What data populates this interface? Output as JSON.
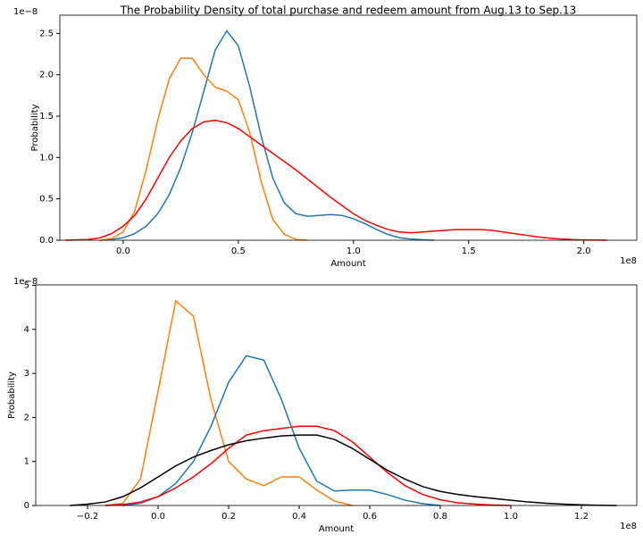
{
  "chart_data": [
    {
      "type": "line",
      "title": "The Probability Density of total purchase and redeem amount from Aug.13 to Sep.13",
      "x_label": "Amount",
      "y_label": "Probability",
      "x_offset_label": "1e8",
      "y_offset_label": "1e−8",
      "xlim": [
        -0.275,
        2.23
      ],
      "ylim": [
        0,
        2.72
      ],
      "xticks": [
        {
          "value": 0,
          "label": "0.0"
        },
        0.5,
        {
          "value": 1,
          "label": "1.0"
        },
        1.5,
        {
          "value": 2,
          "label": "2.0"
        }
      ],
      "yticks": [
        {
          "value": 0,
          "label": "0.0"
        },
        0.5,
        {
          "value": 1,
          "label": "1.0"
        },
        1.5,
        {
          "value": 2,
          "label": "2.0"
        },
        2.5
      ],
      "x": [
        -0.25,
        -0.2,
        -0.15,
        -0.1,
        -0.05,
        0,
        0.05,
        0.1,
        0.15,
        0.2,
        0.25,
        0.3,
        0.35,
        0.4,
        0.45,
        0.5,
        0.55,
        0.6,
        0.65,
        0.7,
        0.75,
        0.8,
        0.85,
        0.9,
        0.95,
        1.0,
        1.05,
        1.1,
        1.15,
        1.2,
        1.25,
        1.3,
        1.35,
        1.4,
        1.45,
        1.5,
        1.55,
        1.6,
        1.65,
        1.7,
        1.75,
        1.8,
        1.85,
        1.9,
        1.95,
        2.0,
        2.05,
        2.1
      ],
      "series": [
        {
          "color": "#1f77b4",
          "values": [
            null,
            null,
            null,
            0,
            0.01,
            0.03,
            0.08,
            0.17,
            0.32,
            0.55,
            0.88,
            1.3,
            1.8,
            2.3,
            2.53,
            2.35,
            1.85,
            1.25,
            0.75,
            0.45,
            0.32,
            0.29,
            0.3,
            0.31,
            0.3,
            0.26,
            0.2,
            0.13,
            0.07,
            0.03,
            0.015,
            0.005,
            0,
            null,
            null,
            null,
            null,
            null,
            null,
            null,
            null,
            null,
            null,
            null,
            null,
            null,
            null,
            null
          ]
        },
        {
          "color": "#ff7f0e",
          "values": [
            null,
            null,
            null,
            0,
            0.02,
            0.1,
            0.35,
            0.85,
            1.45,
            1.95,
            2.2,
            2.2,
            2.0,
            1.85,
            1.8,
            1.7,
            1.3,
            0.7,
            0.25,
            0.07,
            0.01,
            0,
            null,
            null,
            null,
            null,
            null,
            null,
            null,
            null,
            null,
            null,
            null,
            null,
            null,
            null,
            null,
            null,
            null,
            null,
            null,
            null,
            null,
            null,
            null,
            null,
            null,
            null
          ]
        },
        {
          "color": "#ff0000",
          "values": [
            0,
            0.005,
            0.01,
            0.03,
            0.08,
            0.17,
            0.3,
            0.5,
            0.75,
            1.0,
            1.2,
            1.35,
            1.43,
            1.45,
            1.42,
            1.35,
            1.25,
            1.15,
            1.05,
            0.95,
            0.85,
            0.74,
            0.63,
            0.52,
            0.42,
            0.32,
            0.24,
            0.18,
            0.13,
            0.1,
            0.09,
            0.1,
            0.11,
            0.12,
            0.13,
            0.13,
            0.13,
            0.12,
            0.1,
            0.08,
            0.06,
            0.04,
            0.025,
            0.015,
            0.008,
            0.004,
            0.002,
            0
          ]
        }
      ]
    },
    {
      "type": "line",
      "x_label": "Amount",
      "y_label": "Probability",
      "x_offset_label": "1e8",
      "y_offset_label": "1e−8",
      "xlim": [
        -0.347,
        1.357
      ],
      "ylim": [
        0,
        5.01
      ],
      "xticks": [
        {
          "value": -0.2,
          "label": "−0.2"
        },
        {
          "value": 0,
          "label": "0.0"
        },
        0.2,
        0.4,
        0.6,
        0.8,
        {
          "value": 1,
          "label": "1.0"
        },
        1.2
      ],
      "yticks": [
        0,
        1,
        2,
        3,
        4,
        5
      ],
      "x": [
        -0.25,
        -0.2,
        -0.15,
        -0.1,
        -0.05,
        0,
        0.05,
        0.1,
        0.15,
        0.2,
        0.25,
        0.3,
        0.35,
        0.4,
        0.45,
        0.5,
        0.55,
        0.6,
        0.65,
        0.7,
        0.75,
        0.8,
        0.85,
        0.9,
        0.95,
        1.0,
        1.05,
        1.1,
        1.15,
        1.2,
        1.25,
        1.3
      ],
      "series": [
        {
          "color": "#ff7f0e",
          "values": [
            null,
            null,
            0,
            0.05,
            0.6,
            2.6,
            4.65,
            4.3,
            2.4,
            1.0,
            0.6,
            0.45,
            0.65,
            0.65,
            0.35,
            0.1,
            0,
            null,
            null,
            null,
            null,
            null,
            null,
            null,
            null,
            null,
            null,
            null,
            null,
            null,
            null,
            null
          ]
        },
        {
          "color": "#1f77b4",
          "values": [
            null,
            null,
            null,
            0,
            0.05,
            0.2,
            0.5,
            1.0,
            1.8,
            2.8,
            3.4,
            3.3,
            2.4,
            1.3,
            0.55,
            0.33,
            0.35,
            0.35,
            0.25,
            0.12,
            0.04,
            0,
            null,
            null,
            null,
            null,
            null,
            null,
            null,
            null,
            null,
            null
          ]
        },
        {
          "color": "#ff0000",
          "values": [
            null,
            null,
            0,
            0.02,
            0.08,
            0.2,
            0.4,
            0.65,
            0.95,
            1.3,
            1.6,
            1.7,
            1.75,
            1.8,
            1.8,
            1.7,
            1.45,
            1.1,
            0.75,
            0.45,
            0.25,
            0.13,
            0.06,
            0.03,
            0.01,
            0,
            null,
            null,
            null,
            null,
            null,
            null
          ]
        },
        {
          "color": "#000000",
          "values": [
            0,
            0.03,
            0.08,
            0.2,
            0.4,
            0.65,
            0.9,
            1.1,
            1.25,
            1.38,
            1.47,
            1.53,
            1.58,
            1.6,
            1.6,
            1.5,
            1.3,
            1.05,
            0.8,
            0.6,
            0.43,
            0.32,
            0.25,
            0.2,
            0.16,
            0.12,
            0.08,
            0.05,
            0.03,
            0.015,
            0.005,
            0
          ]
        }
      ]
    }
  ]
}
